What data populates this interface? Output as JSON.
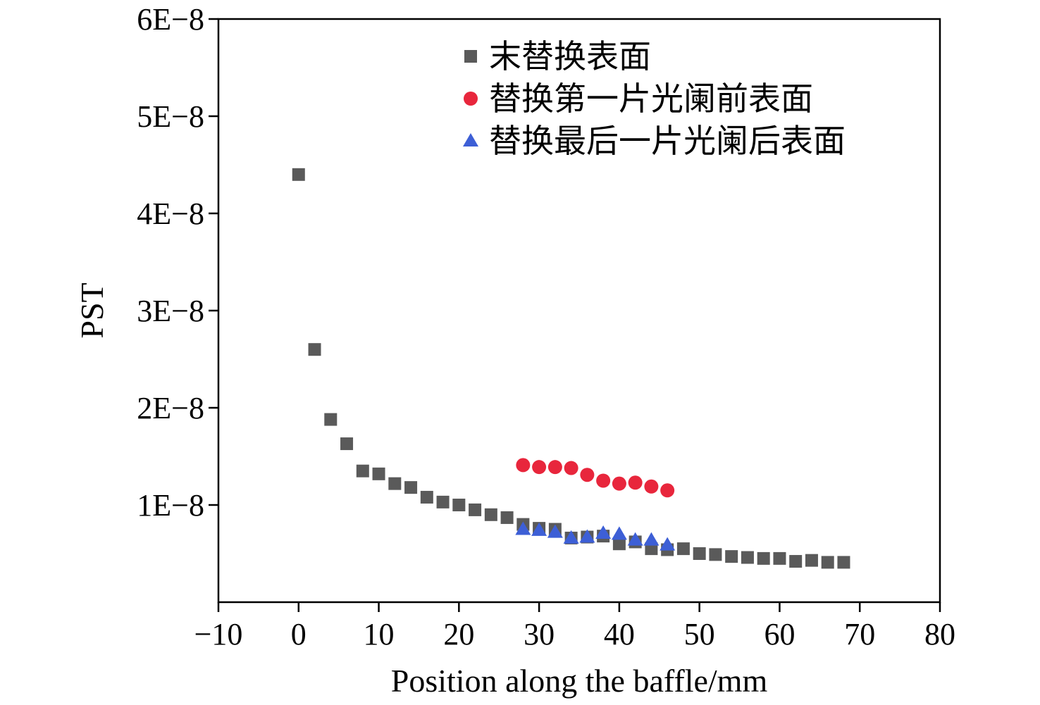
{
  "chart_data": {
    "type": "scatter",
    "xlabel": "Position along the baffle/mm",
    "ylabel": "PST",
    "xlim": [
      -10,
      80
    ],
    "ylim": [
      0,
      6e-08
    ],
    "x_ticks": [
      -10,
      0,
      10,
      20,
      30,
      40,
      50,
      60,
      70,
      80
    ],
    "x_tick_labels": [
      "−10",
      "0",
      "10",
      "20",
      "30",
      "40",
      "50",
      "60",
      "70",
      "80"
    ],
    "y_ticks": [
      1e-08,
      2e-08,
      3e-08,
      4e-08,
      5e-08,
      6e-08
    ],
    "y_tick_labels": [
      "1E−8",
      "2E−8",
      "3E−8",
      "4E−8",
      "5E−8",
      "6E−8"
    ],
    "grid": false,
    "legend_position": "top-right",
    "series": [
      {
        "name": "末替换表面",
        "marker": "square",
        "color": "#5a5a5a",
        "x": [
          0,
          2,
          4,
          6,
          8,
          10,
          12,
          14,
          16,
          18,
          20,
          22,
          24,
          26,
          28,
          30,
          32,
          34,
          36,
          38,
          40,
          42,
          44,
          46,
          48,
          50,
          52,
          54,
          56,
          58,
          60,
          62,
          64,
          66,
          68
        ],
        "y": [
          4.4e-08,
          2.6e-08,
          1.88e-08,
          1.63e-08,
          1.35e-08,
          1.32e-08,
          1.22e-08,
          1.18e-08,
          1.08e-08,
          1.03e-08,
          1e-08,
          9.5e-09,
          9e-09,
          8.7e-09,
          8e-09,
          7.6e-09,
          7.5e-09,
          6.6e-09,
          6.7e-09,
          6.8e-09,
          6e-09,
          6.2e-09,
          5.5e-09,
          5.4e-09,
          5.5e-09,
          5e-09,
          4.9e-09,
          4.7e-09,
          4.6e-09,
          4.5e-09,
          4.5e-09,
          4.2e-09,
          4.3e-09,
          4.1e-09,
          4.1e-09
        ]
      },
      {
        "name": "替换第一片光阑前表面",
        "marker": "circle",
        "color": "#e8263c",
        "x": [
          28,
          30,
          32,
          34,
          36,
          38,
          40,
          42,
          44,
          46
        ],
        "y": [
          1.41e-08,
          1.39e-08,
          1.39e-08,
          1.38e-08,
          1.31e-08,
          1.25e-08,
          1.22e-08,
          1.23e-08,
          1.19e-08,
          1.15e-08
        ]
      },
      {
        "name": "替换最后一片光阑后表面",
        "marker": "triangle",
        "color": "#3d5fd6",
        "x": [
          28,
          30,
          32,
          34,
          36,
          38,
          40,
          42,
          44,
          46
        ],
        "y": [
          7.5e-09,
          7.4e-09,
          7.2e-09,
          6.6e-09,
          6.7e-09,
          7.1e-09,
          7e-09,
          6.4e-09,
          6.4e-09,
          5.9e-09
        ]
      }
    ]
  }
}
